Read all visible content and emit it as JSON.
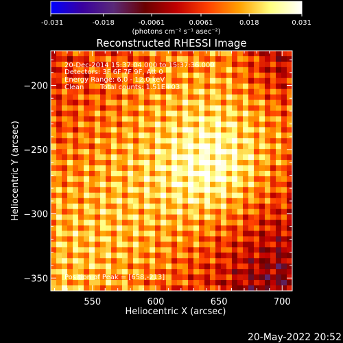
{
  "colorbar": {
    "ticks": [
      "-0.031",
      "-0.018",
      "-0.0061",
      "0.0061",
      "0.018",
      "0.031"
    ],
    "tick_values": [
      -0.031,
      -0.018,
      -0.0061,
      0.0061,
      0.018,
      0.031
    ],
    "range": [
      -0.031,
      0.031
    ],
    "unit_label": "(photons cm⁻² s⁻¹ asec⁻²)",
    "colormap_stops": [
      "#0000ff",
      "#3a00a0",
      "#5a2a78",
      "#6a0000",
      "#c00000",
      "#ff4000",
      "#ffa000",
      "#ffff80",
      "#ffffff"
    ]
  },
  "annotations": {
    "time_range": "20-Dec-2014 15:37:04.000 to 15:37:36.000",
    "detectors": "Detectors: 3F 6F 7F 9F, Att 0",
    "energy_range": "Energy Range: 6.0 - 12.0 keV",
    "clean_label": "Clean",
    "total_counts": "Total counts: 1.51E+03",
    "peak_position": "Position of Peak = [658,-213]"
  },
  "footer_date": "20-May-2022 20:52",
  "chart_data": {
    "type": "heatmap",
    "title": "Reconstructed RHESSI Image",
    "xlabel": "Heliocentric X (arcsec)",
    "ylabel": "Heliocentric Y (arcsec)",
    "xlim": [
      517,
      708
    ],
    "ylim": [
      -360,
      -173
    ],
    "xticks": [
      550,
      600,
      650,
      700
    ],
    "yticks": [
      -200,
      -250,
      -300,
      -350
    ],
    "xtick_labels": [
      "550",
      "600",
      "650",
      "700"
    ],
    "ytick_labels": [
      "−200",
      "−250",
      "−300",
      "−350"
    ],
    "grid": false,
    "peak": [
      658,
      -213
    ],
    "value_range": [
      -0.031,
      0.031
    ]
  }
}
